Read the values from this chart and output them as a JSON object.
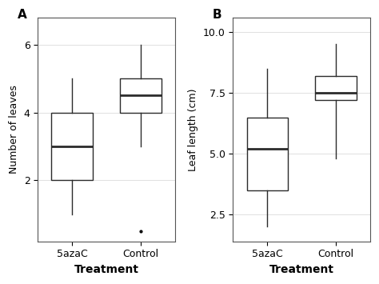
{
  "panel_A": {
    "title": "A",
    "ylabel": "Number of leaves",
    "xlabel": "Treatment",
    "categories": [
      "5azaC",
      "Control"
    ],
    "boxes": [
      {
        "q1": 2.0,
        "median": 3.0,
        "q3": 4.0,
        "whisker_low": 1.0,
        "whisker_high": 5.0,
        "fliers": []
      },
      {
        "q1": 4.0,
        "median": 4.5,
        "q3": 5.0,
        "whisker_low": 3.0,
        "whisker_high": 6.0,
        "fliers": [
          0.5
        ]
      }
    ],
    "ylim": [
      0.2,
      6.8
    ],
    "yticks": [
      2,
      4,
      6
    ]
  },
  "panel_B": {
    "title": "B",
    "ylabel": "Leaf length (cm)",
    "xlabel": "Treatment",
    "categories": [
      "5azaC",
      "Control"
    ],
    "boxes": [
      {
        "q1": 3.5,
        "median": 5.2,
        "q3": 6.5,
        "whisker_low": 2.0,
        "whisker_high": 8.5,
        "fliers": []
      },
      {
        "q1": 7.2,
        "median": 7.5,
        "q3": 8.2,
        "whisker_low": 4.8,
        "whisker_high": 9.5,
        "fliers": []
      }
    ],
    "ylim": [
      1.4,
      10.6
    ],
    "yticks": [
      2.5,
      5.0,
      7.5,
      10.0
    ]
  },
  "box_width": 0.6,
  "linewidth": 1.0,
  "median_linewidth": 2.0,
  "flier_marker": ".",
  "flier_size": 4,
  "background_color": "#ffffff",
  "grid_color": "#e0e0e0",
  "box_color": "#ffffff",
  "line_color": "#2b2b2b"
}
